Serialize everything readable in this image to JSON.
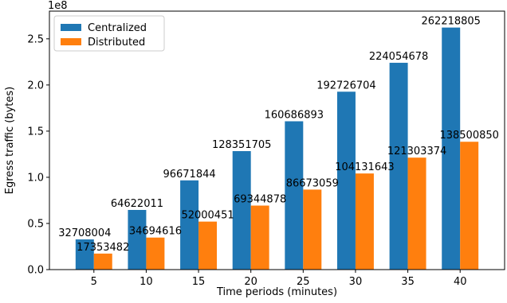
{
  "chart_data": {
    "type": "bar",
    "title": "",
    "xlabel": "Time periods (minutes)",
    "ylabel": "Egress traffic (bytes)",
    "y_offset_text": "1e8",
    "y_scale_factor": 100000000,
    "ylim": [
      0,
      280000000
    ],
    "y_ticks": [
      0,
      50000000,
      100000000,
      150000000,
      200000000,
      250000000
    ],
    "y_tick_labels": [
      "0.0",
      "0.5",
      "1.0",
      "1.5",
      "2.0",
      "2.5"
    ],
    "categories": [
      "5",
      "10",
      "15",
      "20",
      "25",
      "30",
      "35",
      "40"
    ],
    "legend_position": "top-left",
    "grid": false,
    "series": [
      {
        "name": "Centralized",
        "color": "#1f77b4",
        "values": [
          32708004,
          64622011,
          96671844,
          128351705,
          160686893,
          192726704,
          224054678,
          262218805
        ],
        "labels": [
          "32708004",
          "64622011",
          "96671844",
          "128351705",
          "160686893",
          "192726704",
          "224054678",
          "262218805"
        ]
      },
      {
        "name": "Distributed",
        "color": "#ff7f0e",
        "values": [
          17353482,
          34694616,
          52000451,
          69344878,
          86673059,
          104131643,
          121303374,
          138500850
        ],
        "labels": [
          "17353482",
          "34694616",
          "52000451",
          "69344878",
          "86673059",
          "104131643",
          "121303374",
          "138500850"
        ]
      }
    ]
  }
}
